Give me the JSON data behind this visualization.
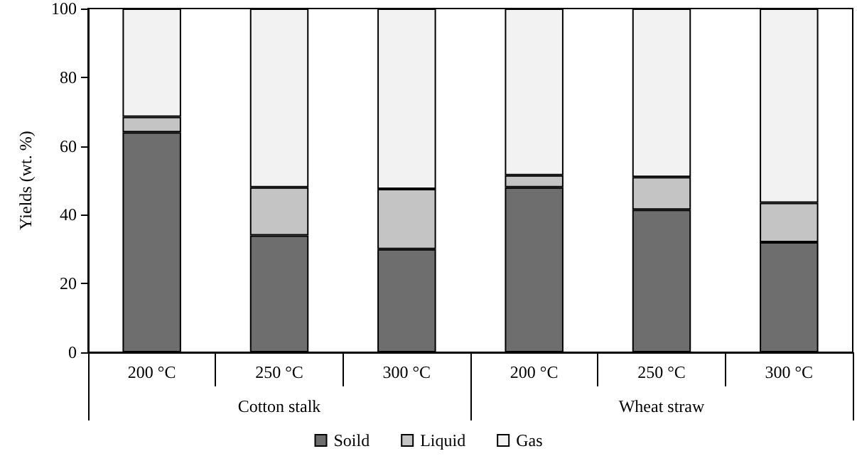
{
  "chart_data": {
    "type": "bar",
    "stacked": true,
    "ylabel": "Yields (wt. %)",
    "categories": [
      "200 °C",
      "250 °C",
      "300 °C",
      "200 °C",
      "250 °C",
      "300 °C"
    ],
    "annotations": [
      "Cotton stalk",
      "Wheat straw"
    ],
    "series": [
      {
        "name": "Soild",
        "color": "#6e6e6e",
        "values": [
          64,
          34,
          30,
          48,
          41.5,
          32
        ]
      },
      {
        "name": "Liquid",
        "color": "#c4c4c4",
        "values": [
          4.5,
          14,
          17.5,
          3.5,
          9.5,
          11.5
        ]
      },
      {
        "name": "Gas",
        "color": "#f2f2f2",
        "values": [
          31.5,
          52,
          52.5,
          48.5,
          49,
          56.5
        ]
      }
    ],
    "ylim": [
      0,
      100
    ],
    "yticks": [
      0,
      20,
      40,
      60,
      80,
      100
    ],
    "grid": false,
    "legend": "bottom"
  }
}
